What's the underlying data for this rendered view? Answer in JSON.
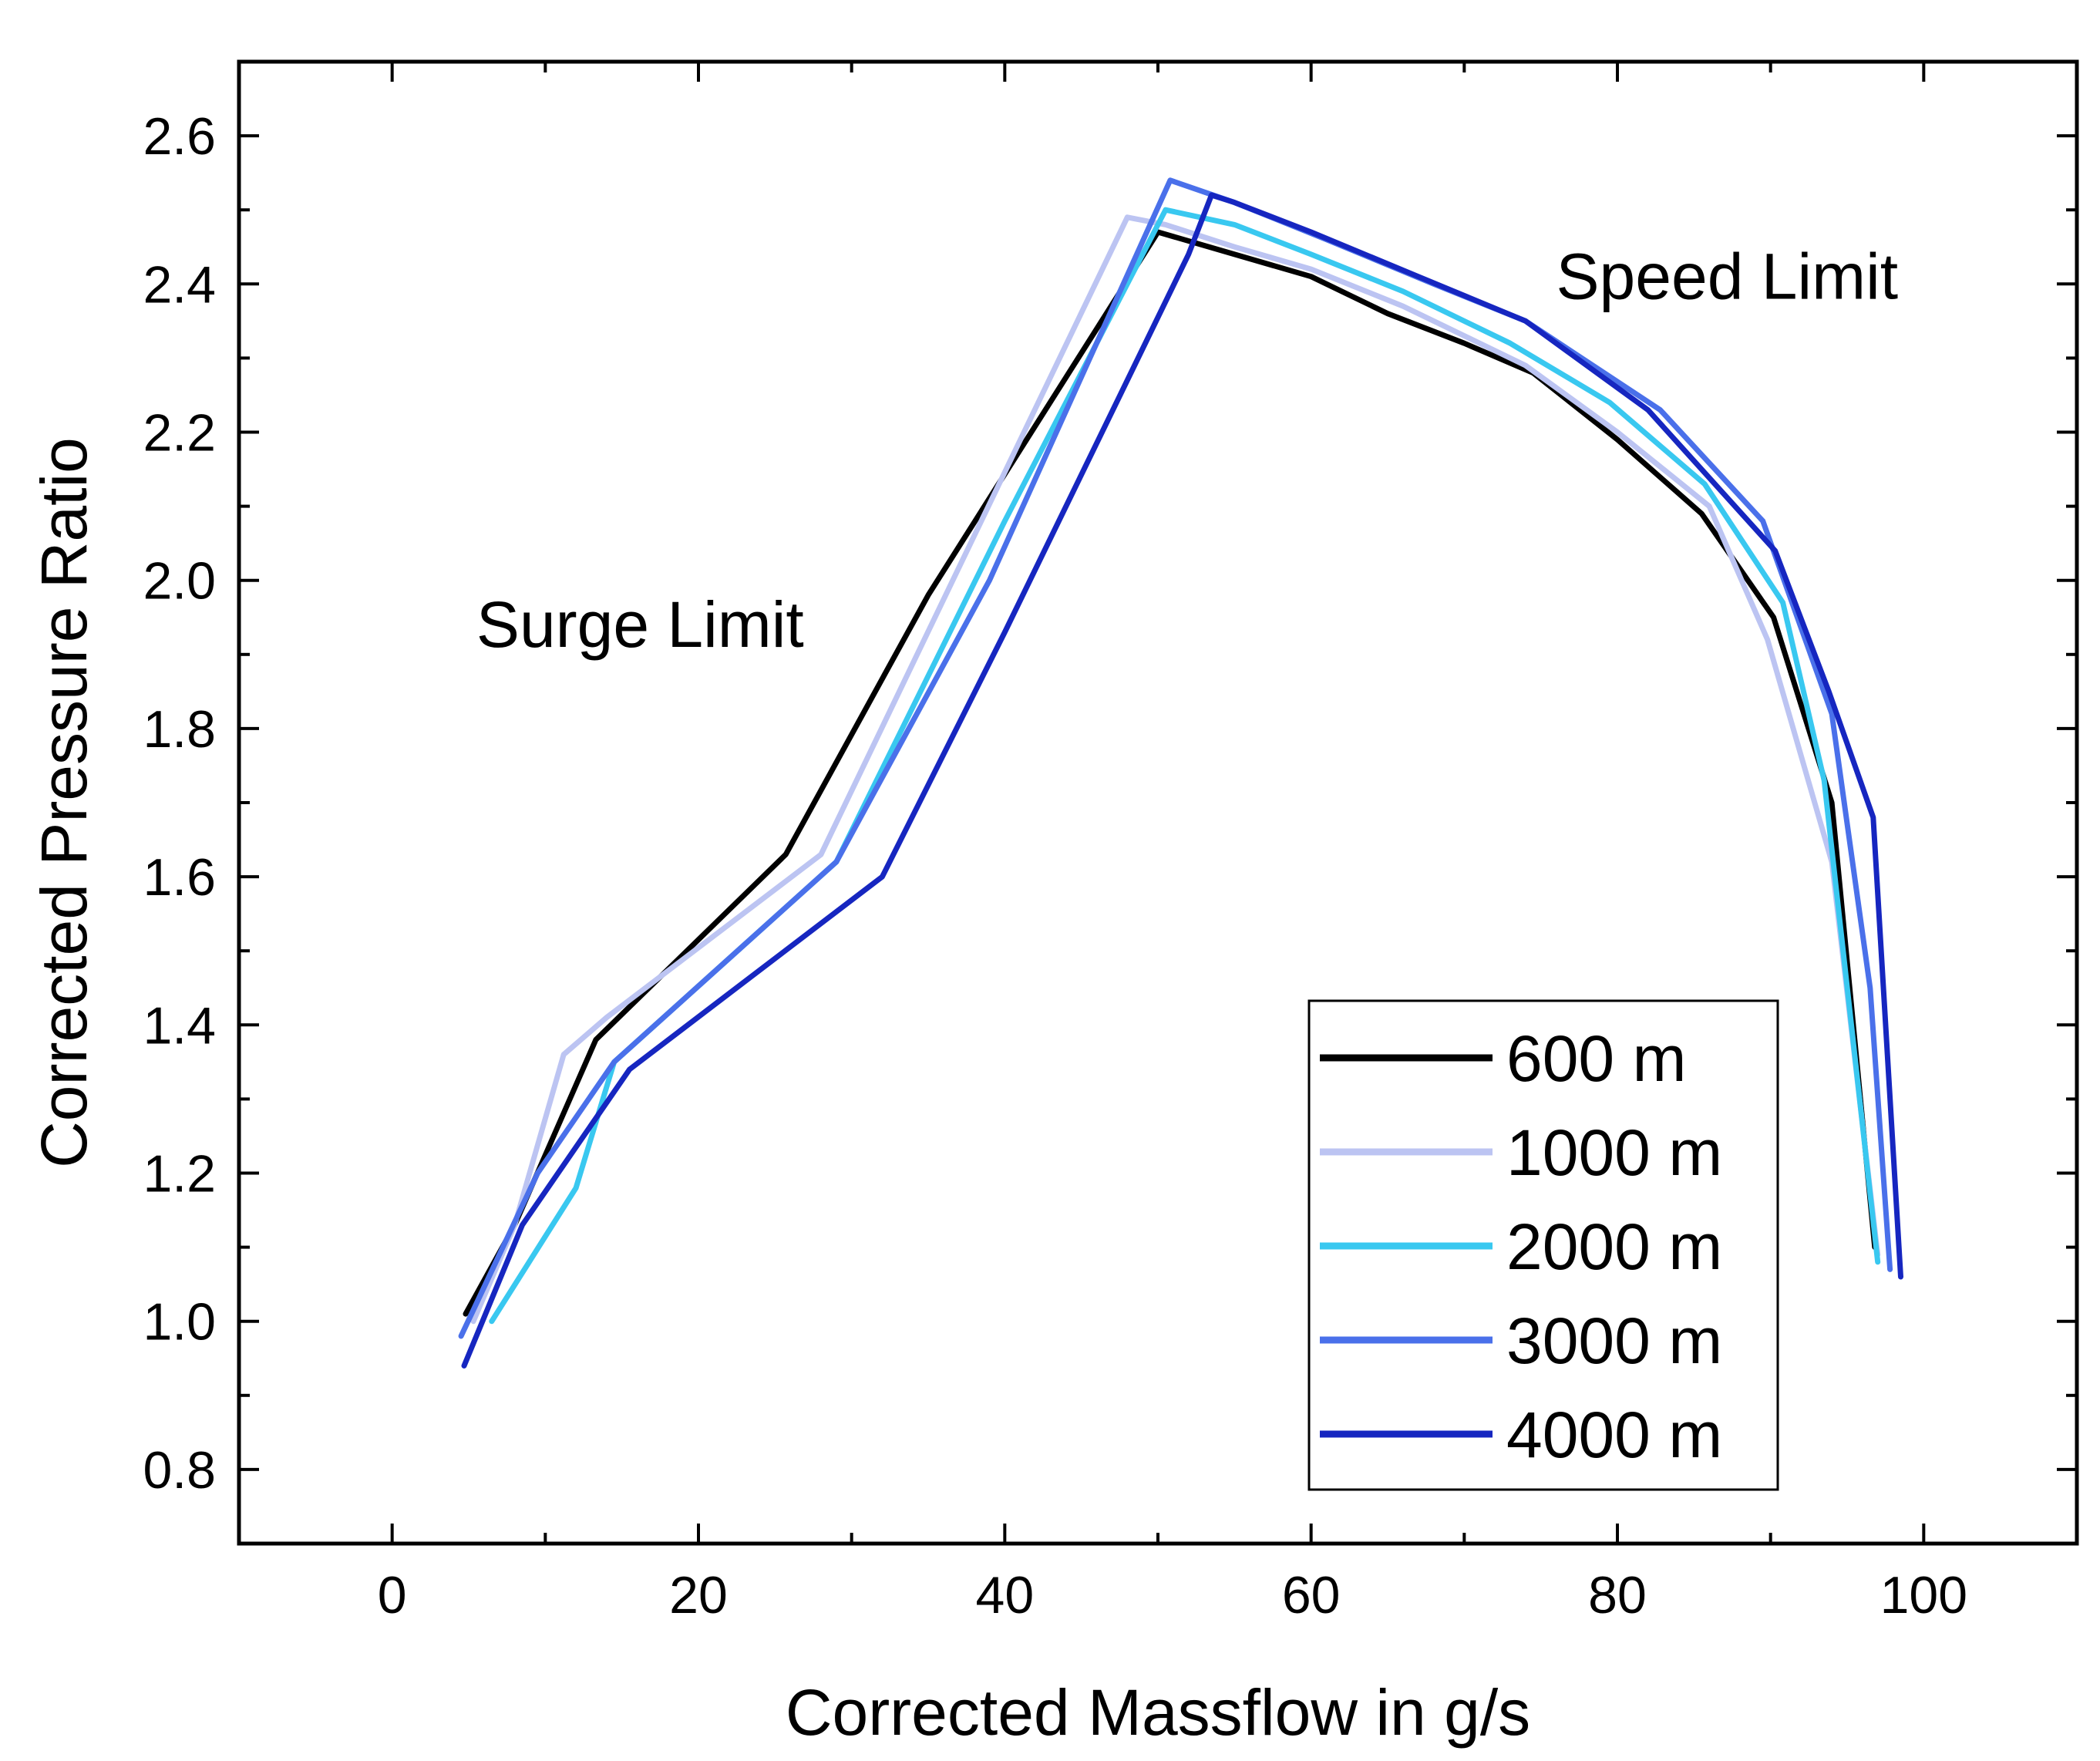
{
  "chart_data": {
    "type": "line",
    "title": "",
    "xlabel": "Corrected Massflow in g/s",
    "ylabel": "Corrected Pressure Ratio",
    "xlim": [
      -10,
      110
    ],
    "ylim": [
      0.7,
      2.7
    ],
    "xticks": [
      0,
      20,
      40,
      60,
      80,
      100
    ],
    "xtick_labels": [
      "0",
      "20",
      "40",
      "60",
      "80",
      "100"
    ],
    "yticks": [
      0.8,
      1.0,
      1.2,
      1.4,
      1.6,
      1.8,
      2.0,
      2.2,
      2.4,
      2.6
    ],
    "ytick_labels": [
      "0.8",
      "1.0",
      "1.2",
      "1.4",
      "1.6",
      "1.8",
      "2.0",
      "2.2",
      "2.4",
      "2.6"
    ],
    "grid": false,
    "legend_position": "bottom-right",
    "annotations": [
      {
        "text": "Surge Limit",
        "x": 5.5,
        "y": 1.91
      },
      {
        "text": "Speed Limit",
        "x": 76,
        "y": 2.38
      }
    ],
    "series": [
      {
        "name": "600 m",
        "color": "#000000",
        "x": [
          4.8,
          8,
          13.3,
          25.7,
          35,
          50,
          60,
          65,
          70,
          74.5,
          80,
          85.5,
          90.2,
          94,
          96.8
        ],
        "y": [
          1.01,
          1.13,
          1.38,
          1.63,
          1.98,
          2.47,
          2.41,
          2.36,
          2.32,
          2.28,
          2.19,
          2.09,
          1.95,
          1.7,
          1.1
        ]
      },
      {
        "name": "1000 m",
        "color": "#bcc4f2",
        "x": [
          5.3,
          8,
          11.2,
          14,
          28,
          48,
          50.5,
          55,
          60,
          66,
          74,
          80,
          86,
          89.8,
          94,
          97
        ],
        "y": [
          1.0,
          1.13,
          1.36,
          1.41,
          1.63,
          2.49,
          2.48,
          2.45,
          2.42,
          2.37,
          2.29,
          2.2,
          2.1,
          1.92,
          1.62,
          1.09
        ]
      },
      {
        "name": "2000 m",
        "color": "#39c8f0",
        "x": [
          6.5,
          12,
          14.5,
          29,
          40,
          50.5,
          55,
          60,
          66,
          73,
          79.5,
          85.7,
          90.8,
          93.5,
          97
        ],
        "y": [
          1.0,
          1.18,
          1.35,
          1.62,
          2.08,
          2.5,
          2.48,
          2.44,
          2.39,
          2.32,
          2.24,
          2.13,
          1.97,
          1.73,
          1.08
        ]
      },
      {
        "name": "3000 m",
        "color": "#4a70ea",
        "x": [
          4.5,
          9.5,
          14.5,
          29,
          39,
          50.8,
          55,
          61,
          68,
          74,
          82.8,
          89.5,
          94,
          96.5,
          97.8
        ],
        "y": [
          0.98,
          1.2,
          1.35,
          1.62,
          2.0,
          2.54,
          2.51,
          2.46,
          2.4,
          2.35,
          2.23,
          2.08,
          1.82,
          1.45,
          1.07
        ]
      },
      {
        "name": "4000 m",
        "color": "#1626c0",
        "x": [
          4.7,
          8.5,
          15.5,
          32,
          40,
          48,
          52,
          53.5,
          55,
          60,
          67,
          74,
          82,
          90.3,
          93.8,
          96.7,
          98.5
        ],
        "y": [
          0.94,
          1.13,
          1.34,
          1.6,
          1.93,
          2.27,
          2.44,
          2.52,
          2.51,
          2.47,
          2.41,
          2.35,
          2.23,
          2.04,
          1.85,
          1.68,
          1.06
        ]
      }
    ]
  }
}
